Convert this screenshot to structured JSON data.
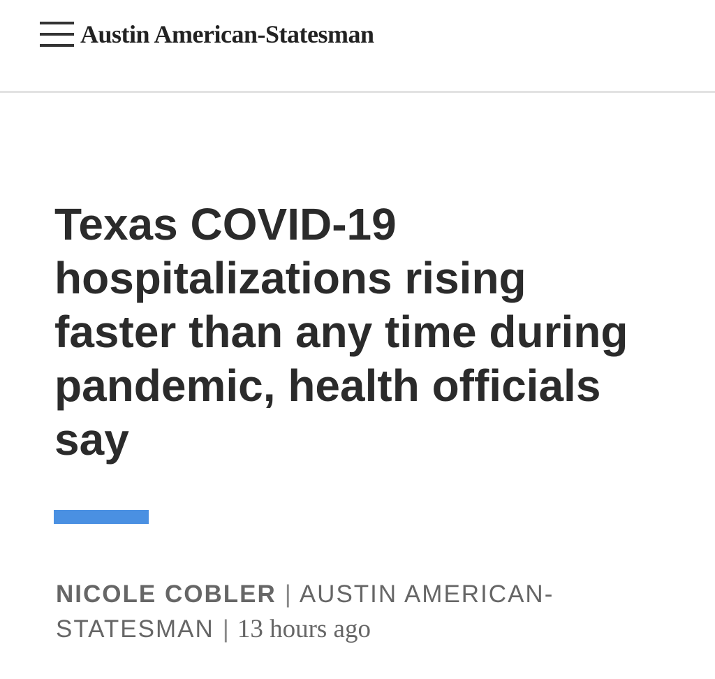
{
  "header": {
    "brand": "Austin American-Statesman"
  },
  "article": {
    "headline": "Texas COVID-19 hospitalizations rising faster than any time during pandemic, health officials say",
    "byline": {
      "author": "NICOLE COBLER",
      "separator": "|",
      "publication": "AUSTIN AMERICAN-STATESMAN",
      "time": "13 hours ago"
    }
  }
}
